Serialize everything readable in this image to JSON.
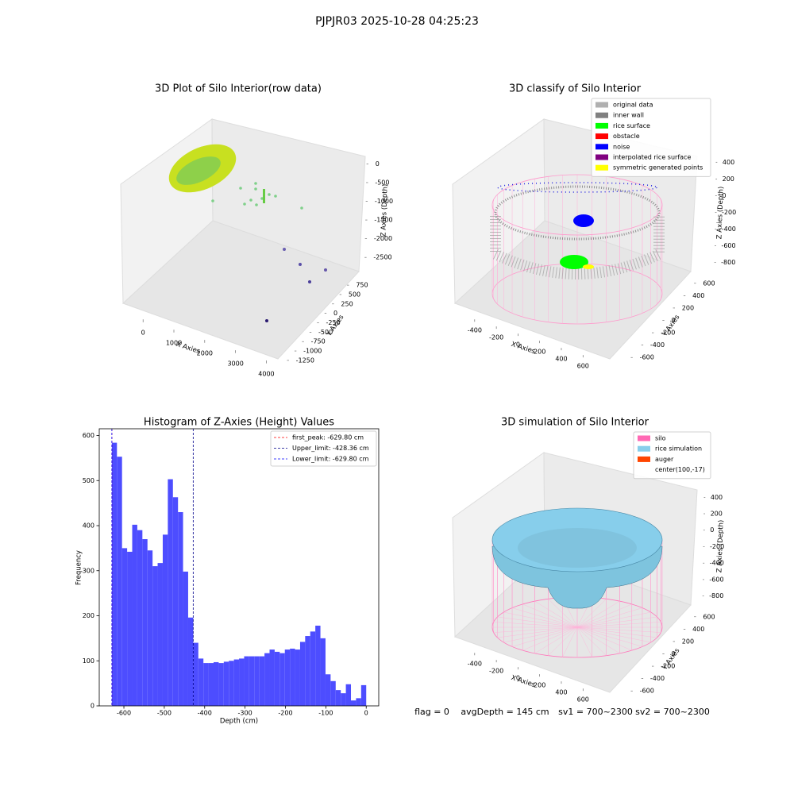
{
  "title": "PJPJR03 2025-10-28 04:25:23",
  "chart_data": [
    {
      "type": "scatter3d",
      "title": "3D Plot of Silo Interior(row data)",
      "xlabel": "X Axies",
      "ylabel": "Y Axies",
      "zlabel": "Z Axies (Depth)",
      "xlim": [
        -700,
        4400
      ],
      "xticks": [
        0,
        1000,
        2000,
        3000,
        4000
      ],
      "ylim": [
        -1400,
        900
      ],
      "yticks": [
        -1250,
        -1000,
        -750,
        -500,
        -250,
        0,
        250,
        500,
        750
      ],
      "zlim": [
        -2900,
        200
      ],
      "zticks": [
        -2500,
        -2000,
        -1500,
        -1000,
        -500,
        0
      ]
    },
    {
      "type": "classify3d",
      "title": "3D classify of Silo Interior",
      "xlabel": "X Axies",
      "ylabel": "Y Axies",
      "zlabel": "Z Axies (Depth)",
      "xlim": [
        -560,
        730
      ],
      "xticks": [
        -400,
        -200,
        0,
        200,
        400,
        600
      ],
      "ylim": [
        -700,
        700
      ],
      "yticks": [
        -600,
        -400,
        -200,
        0,
        200,
        400,
        600
      ],
      "zlim": [
        -900,
        450
      ],
      "zticks": [
        -800,
        -600,
        -400,
        -200,
        0,
        200,
        400
      ],
      "series": [
        {
          "name": "original data",
          "color": "#b0b0b0"
        },
        {
          "name": "inner wall",
          "color": "#808080"
        },
        {
          "name": "rice surface",
          "color": "#00ff00"
        },
        {
          "name": "obstacle",
          "color": "#ff0000"
        },
        {
          "name": "noise",
          "color": "#0000ff"
        },
        {
          "name": "interpolated rice surface",
          "color": "#800080"
        },
        {
          "name": "symmetric generated points",
          "color": "#ffff00"
        }
      ]
    },
    {
      "type": "histogram",
      "title": "Histogram of Z-Axies (Height) Values",
      "xlabel": "Depth (cm)",
      "ylabel": "Frequency",
      "color": "#4d4dff",
      "bins": [
        -629.8,
        -617.2,
        -604.6,
        -592.0,
        -579.4,
        -566.8,
        -554.2,
        -541.6,
        -529.0,
        -516.4,
        -503.8,
        -491.2,
        -478.6,
        -466.0,
        -453.5,
        -440.9,
        -428.3,
        -415.7,
        -403.1,
        -390.5,
        -377.9,
        -365.3,
        -352.7,
        -340.1,
        -327.5,
        -314.9,
        -302.3,
        -289.7,
        -277.1,
        -264.5,
        -251.9,
        -239.3,
        -226.7,
        -214.1,
        -201.5,
        -188.9,
        -176.3,
        -163.7,
        -151.2,
        -138.6,
        -126.0,
        -113.4,
        -100.8,
        -88.2,
        -75.6,
        -63.0,
        -50.4,
        -37.8,
        -25.2,
        -12.6,
        0
      ],
      "values": [
        584,
        553,
        350,
        342,
        402,
        390,
        370,
        345,
        310,
        317,
        380,
        503,
        463,
        430,
        298,
        196,
        140,
        105,
        95,
        95,
        97,
        95,
        98,
        100,
        103,
        105,
        110,
        110,
        110,
        110,
        117,
        125,
        120,
        117,
        125,
        127,
        125,
        142,
        155,
        165,
        178,
        150,
        70,
        55,
        35,
        28,
        48,
        12,
        17,
        46
      ],
      "xlim": [
        -661,
        31
      ],
      "xticks": [
        -600,
        -500,
        -400,
        -300,
        -200,
        -100,
        0
      ],
      "ylim": [
        0,
        615
      ],
      "yticks": [
        0,
        100,
        200,
        300,
        400,
        500,
        600
      ],
      "vlines": [
        {
          "label": "first_peak: -629.80 cm",
          "value": -629.8,
          "color": "#ff0000"
        },
        {
          "label": "Upper_limit: -428.36 cm",
          "value": -428.36,
          "color": "#00008b"
        },
        {
          "label": "Lower_limit: -629.80 cm",
          "value": -629.8,
          "color": "#0000ff"
        }
      ]
    },
    {
      "type": "surface3d",
      "title": "3D simulation of Silo Interior",
      "xlabel": "X Axies",
      "ylabel": "Y Axies",
      "zlabel": "Z Axies (Depth)",
      "xlim": [
        -560,
        730
      ],
      "xticks": [
        -400,
        -200,
        0,
        200,
        400,
        600
      ],
      "ylim": [
        -700,
        700
      ],
      "yticks": [
        -600,
        -400,
        -200,
        0,
        200,
        400,
        600
      ],
      "zlim": [
        -900,
        480
      ],
      "zticks": [
        -800,
        -600,
        -400,
        -200,
        0,
        200,
        400
      ],
      "series": [
        {
          "name": "silo",
          "color": "#ff69b4"
        },
        {
          "name": "rice simulation",
          "color": "#87ceeb"
        },
        {
          "name": "auger",
          "color": "#ff4500"
        },
        {
          "name": "center(100,-17)",
          "color": null
        }
      ]
    }
  ],
  "footer": [
    "flag = 0",
    "avgDepth = 145 cm",
    "sv1 = 700~2300",
    "sv2 = 700~2300"
  ]
}
